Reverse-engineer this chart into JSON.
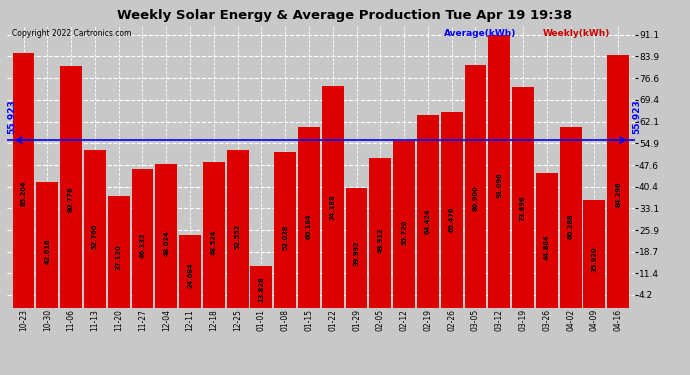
{
  "title": "Weekly Solar Energy & Average Production Tue Apr 19 19:38",
  "copyright": "Copyright 2022 Cartronics.com",
  "categories": [
    "10-23",
    "10-30",
    "11-06",
    "11-13",
    "11-20",
    "11-27",
    "12-04",
    "12-11",
    "12-18",
    "12-25",
    "01-01",
    "01-08",
    "01-15",
    "01-22",
    "01-29",
    "02-05",
    "02-12",
    "02-19",
    "02-26",
    "03-05",
    "03-12",
    "03-19",
    "03-26",
    "04-02",
    "04-09",
    "04-16"
  ],
  "values": [
    85.204,
    42.016,
    80.776,
    52.76,
    37.12,
    46.132,
    48.024,
    24.084,
    48.524,
    52.552,
    13.828,
    52.028,
    60.184,
    74.188,
    39.992,
    49.912,
    55.72,
    64.424,
    65.476,
    80.9,
    91.096,
    73.696,
    44.864,
    60.288,
    35.92,
    84.296
  ],
  "average": 55.923,
  "bar_color": "#dd0000",
  "average_line_color": "#0000ff",
  "background_color": "#c8c8c8",
  "title_color": "#000000",
  "copyright_color": "#000000",
  "avg_label_color": "#0000ff",
  "weekly_label_color": "#cc0000",
  "yticks": [
    4.2,
    11.4,
    18.7,
    25.9,
    33.1,
    40.4,
    47.6,
    54.9,
    62.1,
    69.4,
    76.6,
    83.9,
    91.1
  ],
  "ymin": 0,
  "ymax": 94.0,
  "grid_color": "#ffffff",
  "bar_text_color": "#000000",
  "avg_text": "55.923",
  "legend_avg": "Average(kWh)",
  "legend_weekly": "Weekly(kWh)"
}
